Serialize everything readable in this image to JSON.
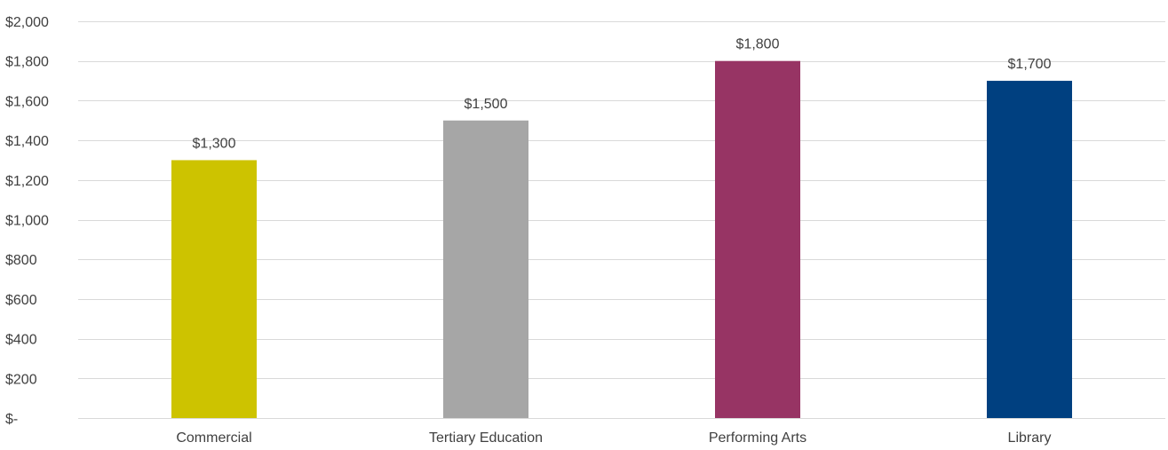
{
  "chart_data": {
    "type": "bar",
    "title": "",
    "xlabel": "",
    "ylabel": "",
    "categories": [
      "Commercial",
      "Tertiary Education",
      "Performing Arts",
      "Library"
    ],
    "values": [
      1300,
      1500,
      1800,
      1700
    ],
    "data_labels": [
      "$1,300",
      "$1,500",
      "$1,800",
      "$1,700"
    ],
    "bar_colors": [
      "#cdc300",
      "#a6a6a6",
      "#973464",
      "#004080"
    ],
    "ylim": [
      0,
      2000
    ],
    "y_ticks": [
      0,
      200,
      400,
      600,
      800,
      1000,
      1200,
      1400,
      1600,
      1800,
      2000
    ],
    "y_tick_labels": [
      "$-",
      "$200",
      "$400",
      "$600",
      "$800",
      "$1,000",
      "$1,200",
      "$1,400",
      "$1,600",
      "$1,800",
      "$2,000"
    ],
    "grid": true,
    "legend": "none",
    "gridline_color": "#d9d9d9",
    "text_color": "#404040"
  }
}
